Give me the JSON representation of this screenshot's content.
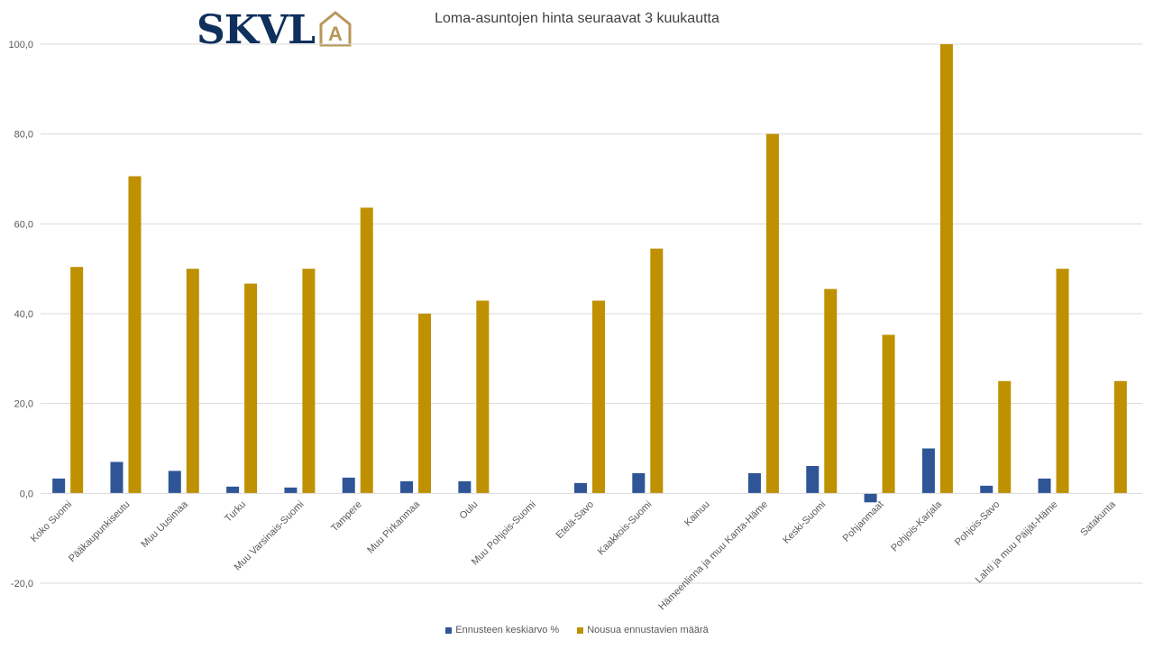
{
  "logo": {
    "text": "SKVL",
    "mark": "A"
  },
  "colors": {
    "series1": "#2f5597",
    "series2": "#bf9000",
    "grid": "#d9d9d9",
    "logo_navy": "#0f2f5c",
    "logo_gold": "#b8975a"
  },
  "chart_data": {
    "type": "bar",
    "title": "Loma-asuntojen hinta seuraavat 3 kuukautta",
    "xlabel": "",
    "ylabel": "",
    "ylim": [
      -20,
      100
    ],
    "yticks": [
      "100,0",
      "80,0",
      "60,0",
      "40,0",
      "20,0",
      "0,0",
      "-20,0"
    ],
    "grid": true,
    "legend_position": "bottom",
    "categories": [
      "Koko Suomi",
      "Pääkaupunkiseutu",
      "Muu Uusimaa",
      "Turku",
      "Muu Varsinais-Suomi",
      "Tampere",
      "Muu Pirkanmaa",
      "Oulu",
      "Muu Pohjois-Suomi",
      "Etelä-Savo",
      "Kaakkois-Suomi",
      "Kainuu",
      "Hämeenlinna ja muu Kanta-Häme",
      "Keski-Suomi",
      "Pohjanmaat",
      "Pohjois-Karjala",
      "Pohjois-Savo",
      "Lahti ja muu Päijät-Häme",
      "Satakunta"
    ],
    "series": [
      {
        "name": "Ennusteen keskiarvo %",
        "values": [
          3.3,
          7.0,
          5.0,
          1.5,
          1.3,
          3.5,
          2.7,
          2.7,
          null,
          2.3,
          4.5,
          null,
          4.5,
          6.1,
          -2.0,
          10.0,
          1.7,
          3.3,
          null
        ]
      },
      {
        "name": "Nousua ennustavien määrä",
        "values": [
          50.4,
          70.6,
          50.0,
          46.7,
          50.0,
          63.6,
          40.0,
          42.9,
          null,
          42.9,
          54.5,
          null,
          80.0,
          45.5,
          35.3,
          100.0,
          25.0,
          50.0,
          25.0
        ]
      }
    ]
  }
}
